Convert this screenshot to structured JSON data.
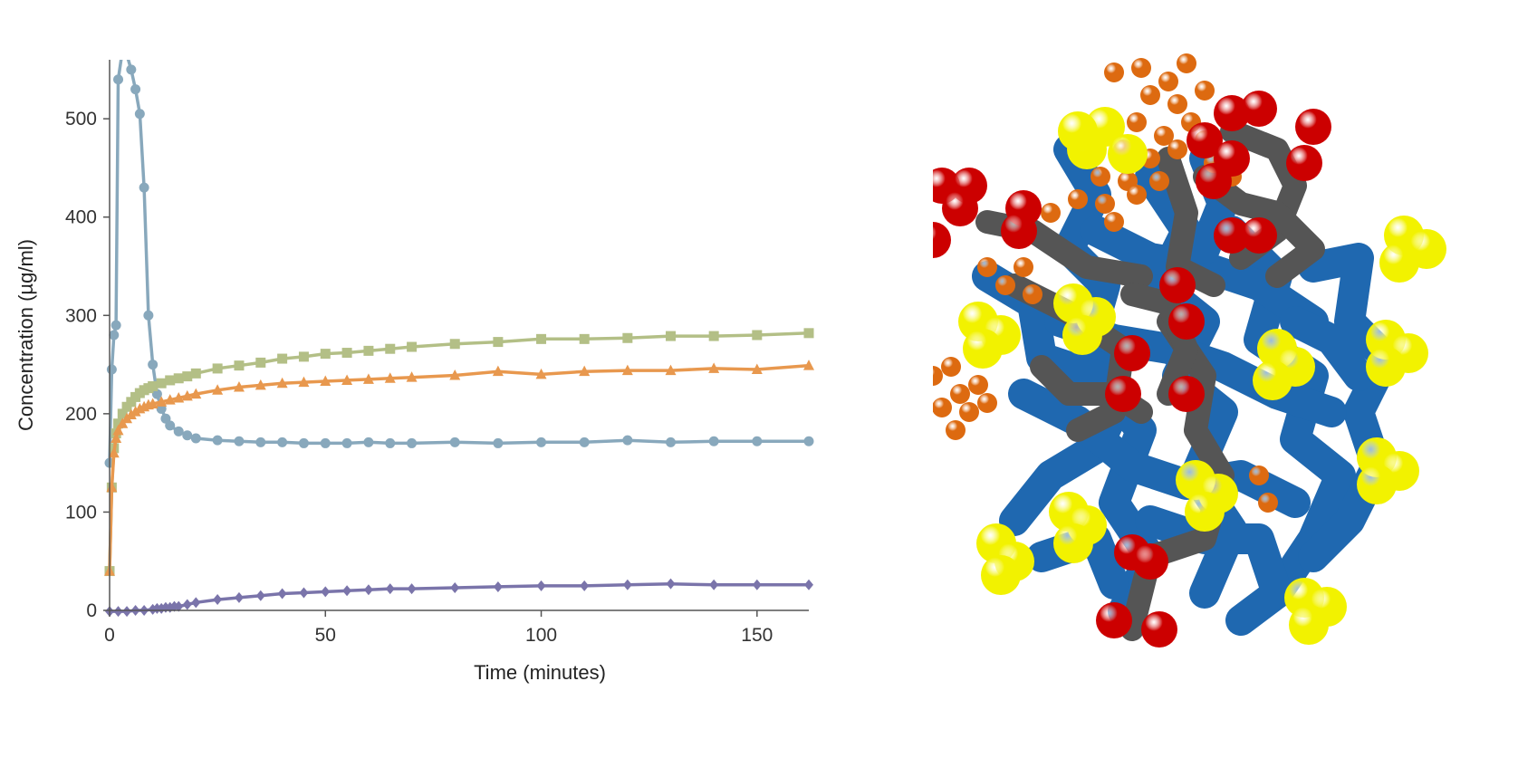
{
  "chart_data": {
    "type": "line",
    "title": "",
    "xlabel": "Time (minutes)",
    "ylabel": "Concentration (µg/ml)",
    "xlim": [
      0,
      162
    ],
    "ylim": [
      0,
      560
    ],
    "xticks": [
      0,
      50,
      100,
      150
    ],
    "yticks": [
      0,
      100,
      200,
      300,
      400,
      500
    ],
    "grid": false,
    "legend": "none",
    "series": [
      {
        "color": "#88a8bc",
        "marker": "circle",
        "x": [
          0,
          0.5,
          1,
          1.5,
          2,
          3,
          4,
          5,
          6,
          7,
          8,
          9,
          10,
          11,
          12,
          13,
          14,
          16,
          18,
          20,
          25,
          30,
          35,
          40,
          45,
          50,
          55,
          60,
          65,
          70,
          80,
          90,
          100,
          110,
          120,
          130,
          140,
          150,
          162
        ],
        "y": [
          150,
          245,
          280,
          290,
          540,
          570,
          565,
          550,
          530,
          505,
          430,
          300,
          250,
          220,
          205,
          195,
          188,
          182,
          178,
          175,
          173,
          172,
          171,
          171,
          170,
          170,
          170,
          171,
          170,
          170,
          171,
          170,
          171,
          171,
          173,
          171,
          172,
          172,
          172
        ]
      },
      {
        "color": "#b3bf86",
        "marker": "square",
        "x": [
          0,
          0.5,
          1,
          1.5,
          2,
          3,
          4,
          5,
          6,
          7,
          8,
          9,
          10,
          12,
          14,
          16,
          18,
          20,
          25,
          30,
          35,
          40,
          45,
          50,
          55,
          60,
          65,
          70,
          80,
          90,
          100,
          110,
          120,
          130,
          140,
          150,
          162
        ],
        "y": [
          40,
          125,
          165,
          180,
          190,
          200,
          207,
          212,
          217,
          221,
          224,
          226,
          228,
          231,
          234,
          236,
          238,
          241,
          246,
          249,
          252,
          256,
          258,
          261,
          262,
          264,
          266,
          268,
          271,
          273,
          276,
          276,
          277,
          279,
          279,
          280,
          282
        ]
      },
      {
        "color": "#e8984e",
        "marker": "triangle",
        "x": [
          0,
          0.5,
          1,
          1.5,
          2,
          3,
          4,
          5,
          6,
          7,
          8,
          9,
          10,
          12,
          14,
          16,
          18,
          20,
          25,
          30,
          35,
          40,
          45,
          50,
          55,
          60,
          65,
          70,
          80,
          90,
          100,
          110,
          120,
          130,
          140,
          150,
          162
        ],
        "y": [
          40,
          125,
          160,
          175,
          183,
          190,
          195,
          199,
          202,
          205,
          207,
          209,
          210,
          212,
          214,
          216,
          218,
          220,
          224,
          227,
          229,
          231,
          232,
          233,
          234,
          235,
          236,
          237,
          239,
          243,
          240,
          243,
          244,
          244,
          246,
          245,
          249
        ]
      },
      {
        "color": "#7a74aa",
        "marker": "diamond",
        "x": [
          0,
          2,
          4,
          6,
          8,
          10,
          11,
          12,
          13,
          14,
          15,
          16,
          18,
          20,
          25,
          30,
          35,
          40,
          45,
          50,
          55,
          60,
          65,
          70,
          80,
          90,
          100,
          110,
          120,
          130,
          140,
          150,
          162
        ],
        "y": [
          -1,
          -1,
          -1,
          0,
          0,
          1,
          2,
          2,
          3,
          3,
          4,
          4,
          6,
          8,
          11,
          13,
          15,
          17,
          18,
          19,
          20,
          21,
          22,
          22,
          23,
          24,
          25,
          25,
          26,
          27,
          26,
          26,
          26
        ]
      }
    ]
  },
  "molecule": {
    "colors": {
      "backbone": "#1f68b0",
      "chain": "#555555",
      "oxygen": "#cc0000",
      "sulfur": "#f2f200",
      "drug": "#dd6a10"
    }
  }
}
